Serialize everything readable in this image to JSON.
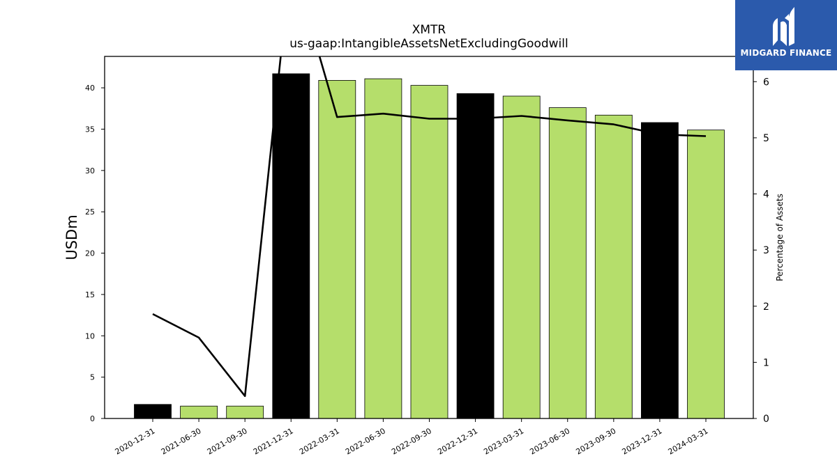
{
  "chart_data": {
    "type": "bar",
    "title": "XMTR",
    "subtitle": "us-gaap:IntangibleAssetsNetExcludingGoodwill",
    "ylabel": "USDm",
    "y2label": "Percentage of Assets",
    "categories": [
      "2020-12-31",
      "2021-06-30",
      "2021-09-30",
      "2021-12-31",
      "2022-03-31",
      "2022-06-30",
      "2022-09-30",
      "2022-12-31",
      "2023-03-31",
      "2023-06-30",
      "2023-09-30",
      "2023-12-31",
      "2024-03-31"
    ],
    "series": [
      {
        "type": "bar",
        "values": [
          1.7,
          1.5,
          1.5,
          41.7,
          40.9,
          41.1,
          40.3,
          39.3,
          39.0,
          37.6,
          36.7,
          35.8,
          34.9
        ],
        "colors": [
          "#000000",
          "#b5de6b",
          "#b5de6b",
          "#000000",
          "#b5de6b",
          "#b5de6b",
          "#b5de6b",
          "#000000",
          "#b5de6b",
          "#b5de6b",
          "#b5de6b",
          "#000000",
          "#b5de6b"
        ]
      },
      {
        "type": "line",
        "axis": "right",
        "color": "#000000",
        "values": [
          1.86,
          1.44,
          0.4,
          8.2,
          5.37,
          5.43,
          5.34,
          5.34,
          5.39,
          5.31,
          5.24,
          5.06,
          5.03
        ]
      }
    ],
    "ylim": [
      0,
      43.8
    ],
    "y2lim": [
      0,
      6.45
    ],
    "yticks": [
      "0",
      "5",
      "10",
      "15",
      "20",
      "25",
      "30",
      "35",
      "40"
    ],
    "y2ticks": [
      "0",
      "1",
      "2",
      "3",
      "4",
      "5",
      "6"
    ],
    "grid": false
  },
  "logo": {
    "text": "MIDGARD FINANCE"
  }
}
